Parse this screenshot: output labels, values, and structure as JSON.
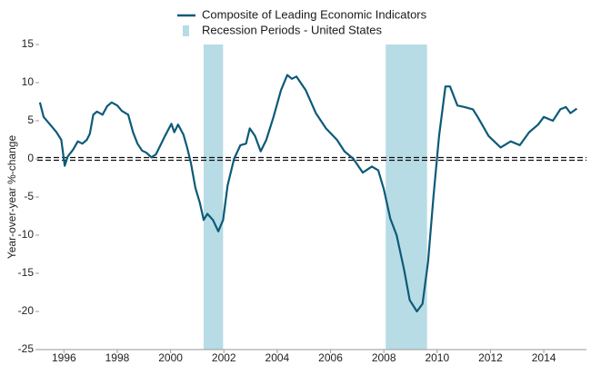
{
  "chart_data": {
    "type": "line",
    "y_label": "Year-over-year %-change",
    "x": [
      1995.1,
      1995.24,
      1995.48,
      1995.72,
      1995.9,
      1996.03,
      1996.14,
      1996.34,
      1996.52,
      1996.69,
      1996.86,
      1996.97,
      1997.1,
      1997.24,
      1997.45,
      1997.62,
      1997.79,
      1998.0,
      1998.17,
      1998.41,
      1998.59,
      1998.76,
      1998.93,
      1999.1,
      1999.28,
      1999.45,
      1999.62,
      1999.79,
      2000.03,
      2000.14,
      2000.28,
      2000.48,
      2000.62,
      2000.76,
      2000.93,
      2001.1,
      2001.24,
      2001.38,
      2001.59,
      2001.79,
      2001.97,
      2002.14,
      2002.38,
      2002.62,
      2002.83,
      2002.97,
      2003.17,
      2003.38,
      2003.59,
      2003.86,
      2004.14,
      2004.38,
      2004.55,
      2004.72,
      2005.07,
      2005.45,
      2005.83,
      2006.24,
      2006.52,
      2006.86,
      2007.21,
      2007.55,
      2007.79,
      2008.0,
      2008.24,
      2008.48,
      2008.76,
      2008.97,
      2009.24,
      2009.45,
      2009.66,
      2009.86,
      2010.07,
      2010.31,
      2010.48,
      2010.76,
      2011.03,
      2011.34,
      2011.52,
      2011.93,
      2012.38,
      2012.76,
      2013.1,
      2013.45,
      2013.79,
      2014.0,
      2014.34,
      2014.62,
      2014.83,
      2015.0,
      2015.24
    ],
    "series": [
      {
        "name": "Composite of Leading Economic Indicators",
        "color": "#0d5a78",
        "values": [
          7.4,
          5.5,
          4.5,
          3.5,
          2.5,
          -0.9,
          0.3,
          1.2,
          2.3,
          2.0,
          2.5,
          3.3,
          5.8,
          6.2,
          5.8,
          6.9,
          7.4,
          7.0,
          6.3,
          5.8,
          3.5,
          2.0,
          1.1,
          0.8,
          0.2,
          0.6,
          1.8,
          3.0,
          4.6,
          3.5,
          4.5,
          3.2,
          1.5,
          -0.5,
          -3.8,
          -5.8,
          -8.0,
          -7.2,
          -8.0,
          -9.5,
          -8.0,
          -3.5,
          0.0,
          1.8,
          2.0,
          4.0,
          3.0,
          1.0,
          2.5,
          5.5,
          9.0,
          11.0,
          10.5,
          10.8,
          9.0,
          6.0,
          4.0,
          2.5,
          1.0,
          0.0,
          -1.8,
          -1.0,
          -1.5,
          -4.0,
          -7.8,
          -10.0,
          -14.5,
          -18.5,
          -20.0,
          -19.0,
          -13.5,
          -5.0,
          3.0,
          9.5,
          9.5,
          7.0,
          6.8,
          6.5,
          5.5,
          3.0,
          1.5,
          2.3,
          1.8,
          3.5,
          4.5,
          5.5,
          5.0,
          6.5,
          6.8,
          6.0,
          6.6
        ]
      }
    ],
    "recessions": {
      "name": "Recession Periods - United States",
      "color": "#b7dce5",
      "periods": [
        [
          2001.24,
          2001.97
        ],
        [
          2008.07,
          2009.62
        ]
      ]
    },
    "xlim": [
      1995,
      2015.6
    ],
    "xticks": [
      1996,
      1998,
      2000,
      2002,
      2004,
      2006,
      2008,
      2010,
      2012,
      2014
    ],
    "ylim": [
      -25,
      15
    ],
    "yticks": [
      -25,
      -20,
      -15,
      -10,
      -5,
      0,
      5,
      10,
      15
    ]
  }
}
